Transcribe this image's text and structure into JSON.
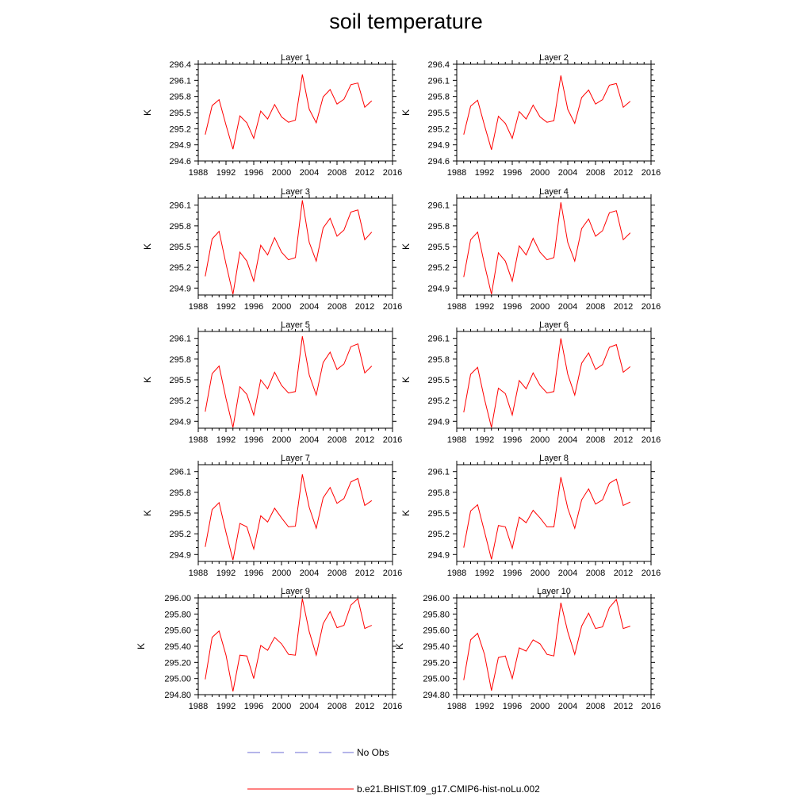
{
  "title": "soil temperature",
  "ylabel": "K",
  "x_ticks": [
    1988,
    1992,
    1996,
    2000,
    2004,
    2008,
    2012,
    2016
  ],
  "xlim": [
    1988,
    2016
  ],
  "legend": {
    "obs_label": "No Obs",
    "model_label": "b.e21.BHIST.f09_g17.CMIP6-hist-noLu.002",
    "obs_color": "#6b6bd6",
    "model_color": "#ff0000"
  },
  "chart_data": [
    {
      "type": "line",
      "title": "Layer 1",
      "ylim": [
        294.6,
        296.4
      ],
      "yticks": [
        "294.6",
        "294.9",
        "295.2",
        "295.5",
        "295.8",
        "296.1",
        "296.4"
      ],
      "x": [
        1989,
        1990,
        1991,
        1992,
        1993,
        1994,
        1995,
        1996,
        1997,
        1998,
        1999,
        2000,
        2001,
        2002,
        2003,
        2004,
        2005,
        2006,
        2007,
        2008,
        2009,
        2010,
        2011,
        2012,
        2013
      ],
      "series": [
        {
          "name": "b.e21.BHIST.f09_g17.CMIP6-hist-noLu.002",
          "values": [
            295.09,
            295.63,
            295.74,
            295.27,
            294.82,
            295.44,
            295.31,
            295.02,
            295.53,
            295.38,
            295.65,
            295.42,
            295.32,
            295.36,
            296.21,
            295.56,
            295.31,
            295.79,
            295.93,
            295.66,
            295.75,
            296.02,
            296.05,
            295.6,
            295.72
          ]
        }
      ]
    },
    {
      "type": "line",
      "title": "Layer 2",
      "ylim": [
        294.6,
        296.4
      ],
      "yticks": [
        "294.6",
        "294.9",
        "295.2",
        "295.5",
        "295.8",
        "296.1",
        "296.4"
      ],
      "x": [
        1989,
        1990,
        1991,
        1992,
        1993,
        1994,
        1995,
        1996,
        1997,
        1998,
        1999,
        2000,
        2001,
        2002,
        2003,
        2004,
        2005,
        2006,
        2007,
        2008,
        2009,
        2010,
        2011,
        2012,
        2013
      ],
      "series": [
        {
          "name": "b.e21.BHIST.f09_g17.CMIP6-hist-noLu.002",
          "values": [
            295.09,
            295.62,
            295.73,
            295.26,
            294.81,
            295.43,
            295.3,
            295.02,
            295.52,
            295.38,
            295.64,
            295.42,
            295.32,
            295.35,
            296.19,
            295.56,
            295.3,
            295.78,
            295.92,
            295.66,
            295.74,
            296.01,
            296.04,
            295.6,
            295.71
          ]
        }
      ]
    },
    {
      "type": "line",
      "title": "Layer 3",
      "ylim": [
        294.8,
        296.2
      ],
      "yticks": [
        "294.9",
        "295.2",
        "295.5",
        "295.8",
        "296.1"
      ],
      "x": [
        1989,
        1990,
        1991,
        1992,
        1993,
        1994,
        1995,
        1996,
        1997,
        1998,
        1999,
        2000,
        2001,
        2002,
        2003,
        2004,
        2005,
        2006,
        2007,
        2008,
        2009,
        2010,
        2011,
        2012,
        2013
      ],
      "series": [
        {
          "name": "b.e21.BHIST.f09_g17.CMIP6-hist-noLu.002",
          "values": [
            295.07,
            295.61,
            295.72,
            295.25,
            294.81,
            295.42,
            295.29,
            295.0,
            295.52,
            295.38,
            295.63,
            295.42,
            295.31,
            295.34,
            296.17,
            295.56,
            295.29,
            295.77,
            295.91,
            295.65,
            295.74,
            296.0,
            296.03,
            295.6,
            295.71
          ]
        }
      ]
    },
    {
      "type": "line",
      "title": "Layer 4",
      "ylim": [
        294.8,
        296.2
      ],
      "yticks": [
        "294.9",
        "295.2",
        "295.5",
        "295.8",
        "296.1"
      ],
      "x": [
        1989,
        1990,
        1991,
        1992,
        1993,
        1994,
        1995,
        1996,
        1997,
        1998,
        1999,
        2000,
        2001,
        2002,
        2003,
        2004,
        2005,
        2006,
        2007,
        2008,
        2009,
        2010,
        2011,
        2012,
        2013
      ],
      "series": [
        {
          "name": "b.e21.BHIST.f09_g17.CMIP6-hist-noLu.002",
          "values": [
            295.06,
            295.6,
            295.71,
            295.24,
            294.81,
            295.41,
            295.29,
            295.0,
            295.51,
            295.38,
            295.62,
            295.42,
            295.31,
            295.34,
            296.14,
            295.56,
            295.29,
            295.76,
            295.9,
            295.65,
            295.73,
            295.99,
            296.02,
            295.6,
            295.7
          ]
        }
      ]
    },
    {
      "type": "line",
      "title": "Layer 5",
      "ylim": [
        294.8,
        296.2
      ],
      "yticks": [
        "294.9",
        "295.2",
        "295.5",
        "295.8",
        "296.1"
      ],
      "x": [
        1989,
        1990,
        1991,
        1992,
        1993,
        1994,
        1995,
        1996,
        1997,
        1998,
        1999,
        2000,
        2001,
        2002,
        2003,
        2004,
        2005,
        2006,
        2007,
        2008,
        2009,
        2010,
        2011,
        2012,
        2013
      ],
      "series": [
        {
          "name": "b.e21.BHIST.f09_g17.CMIP6-hist-noLu.002",
          "values": [
            295.04,
            295.59,
            295.7,
            295.23,
            294.81,
            295.4,
            295.29,
            294.99,
            295.5,
            295.37,
            295.61,
            295.42,
            295.31,
            295.33,
            296.13,
            295.57,
            295.28,
            295.75,
            295.9,
            295.65,
            295.73,
            295.98,
            296.02,
            295.6,
            295.7
          ]
        }
      ]
    },
    {
      "type": "line",
      "title": "Layer 6",
      "ylim": [
        294.8,
        296.2
      ],
      "yticks": [
        "294.9",
        "295.2",
        "295.5",
        "295.8",
        "296.1"
      ],
      "x": [
        1989,
        1990,
        1991,
        1992,
        1993,
        1994,
        1995,
        1996,
        1997,
        1998,
        1999,
        2000,
        2001,
        2002,
        2003,
        2004,
        2005,
        2006,
        2007,
        2008,
        2009,
        2010,
        2011,
        2012,
        2013
      ],
      "series": [
        {
          "name": "b.e21.BHIST.f09_g17.CMIP6-hist-noLu.002",
          "values": [
            295.03,
            295.58,
            295.68,
            295.22,
            294.81,
            295.38,
            295.3,
            294.99,
            295.49,
            295.37,
            295.6,
            295.42,
            295.31,
            295.33,
            296.1,
            295.58,
            295.28,
            295.74,
            295.89,
            295.65,
            295.72,
            295.97,
            296.01,
            295.61,
            295.69
          ]
        }
      ]
    },
    {
      "type": "line",
      "title": "Layer 7",
      "ylim": [
        294.8,
        296.2
      ],
      "yticks": [
        "294.9",
        "295.2",
        "295.5",
        "295.8",
        "296.1"
      ],
      "x": [
        1989,
        1990,
        1991,
        1992,
        1993,
        1994,
        1995,
        1996,
        1997,
        1998,
        1999,
        2000,
        2001,
        2002,
        2003,
        2004,
        2005,
        2006,
        2007,
        2008,
        2009,
        2010,
        2011,
        2012,
        2013
      ],
      "series": [
        {
          "name": "b.e21.BHIST.f09_g17.CMIP6-hist-noLu.002",
          "values": [
            295.01,
            295.55,
            295.65,
            295.22,
            294.82,
            295.35,
            295.3,
            294.98,
            295.46,
            295.37,
            295.57,
            295.43,
            295.3,
            295.31,
            296.06,
            295.58,
            295.28,
            295.72,
            295.87,
            295.64,
            295.71,
            295.95,
            296.0,
            295.61,
            295.68
          ]
        }
      ]
    },
    {
      "type": "line",
      "title": "Layer 8",
      "ylim": [
        294.8,
        296.2
      ],
      "yticks": [
        "294.9",
        "295.2",
        "295.5",
        "295.8",
        "296.1"
      ],
      "x": [
        1989,
        1990,
        1991,
        1992,
        1993,
        1994,
        1995,
        1996,
        1997,
        1998,
        1999,
        2000,
        2001,
        2002,
        2003,
        2004,
        2005,
        2006,
        2007,
        2008,
        2009,
        2010,
        2011,
        2012,
        2013
      ],
      "series": [
        {
          "name": "b.e21.BHIST.f09_g17.CMIP6-hist-noLu.002",
          "values": [
            295.0,
            295.53,
            295.62,
            295.23,
            294.83,
            295.32,
            295.3,
            294.99,
            295.44,
            295.36,
            295.54,
            295.43,
            295.3,
            295.3,
            296.02,
            295.57,
            295.28,
            295.69,
            295.85,
            295.63,
            295.69,
            295.93,
            295.99,
            295.61,
            295.66
          ]
        }
      ]
    },
    {
      "type": "line",
      "title": "Layer 9",
      "ylim": [
        294.8,
        296.0
      ],
      "yticks": [
        "294.80",
        "295.00",
        "295.20",
        "295.40",
        "295.60",
        "295.80",
        "296.00"
      ],
      "x": [
        1989,
        1990,
        1991,
        1992,
        1993,
        1994,
        1995,
        1996,
        1997,
        1998,
        1999,
        2000,
        2001,
        2002,
        2003,
        2004,
        2005,
        2006,
        2007,
        2008,
        2009,
        2010,
        2011,
        2012,
        2013
      ],
      "series": [
        {
          "name": "b.e21.BHIST.f09_g17.CMIP6-hist-noLu.002",
          "values": [
            294.99,
            295.51,
            295.59,
            295.29,
            294.84,
            295.29,
            295.28,
            295.0,
            295.41,
            295.35,
            295.51,
            295.43,
            295.3,
            295.29,
            295.99,
            295.58,
            295.29,
            295.68,
            295.83,
            295.63,
            295.66,
            295.91,
            295.99,
            295.62,
            295.66
          ]
        }
      ]
    },
    {
      "type": "line",
      "title": "Layer 10",
      "ylim": [
        294.8,
        296.0
      ],
      "yticks": [
        "294.80",
        "295.00",
        "295.20",
        "295.40",
        "295.60",
        "295.80",
        "296.00"
      ],
      "x": [
        1989,
        1990,
        1991,
        1992,
        1993,
        1994,
        1995,
        1996,
        1997,
        1998,
        1999,
        2000,
        2001,
        2002,
        2003,
        2004,
        2005,
        2006,
        2007,
        2008,
        2009,
        2010,
        2011,
        2012,
        2013
      ],
      "series": [
        {
          "name": "b.e21.BHIST.f09_g17.CMIP6-hist-noLu.002",
          "values": [
            294.98,
            295.48,
            295.56,
            295.3,
            294.85,
            295.26,
            295.28,
            295.0,
            295.38,
            295.34,
            295.48,
            295.43,
            295.3,
            295.28,
            295.94,
            295.58,
            295.3,
            295.65,
            295.81,
            295.62,
            295.64,
            295.88,
            295.98,
            295.62,
            295.65
          ]
        }
      ]
    }
  ]
}
